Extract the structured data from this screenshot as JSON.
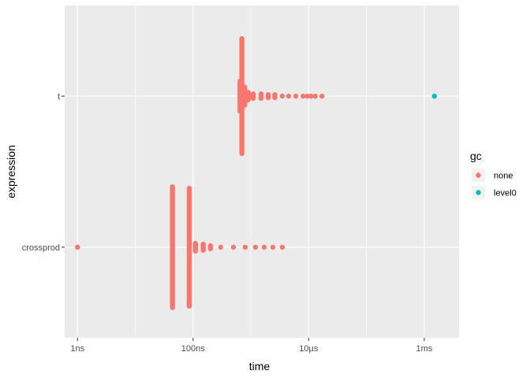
{
  "chart_data": {
    "type": "scatter",
    "title": "",
    "xlabel": "time",
    "ylabel": "expression",
    "x_scale": "log10",
    "x_unit": "seconds",
    "xlim": [
      6e-10,
      0.004
    ],
    "x_ticks": [
      {
        "value": 1e-09,
        "label": "1ns"
      },
      {
        "value": 1e-07,
        "label": "100ns"
      },
      {
        "value": 1e-05,
        "label": "10µs"
      },
      {
        "value": 0.001,
        "label": "1ms"
      }
    ],
    "categories": [
      "crossprod",
      "t"
    ],
    "grid": true,
    "legend": {
      "title": "gc",
      "position": "right",
      "entries": [
        {
          "label": "none",
          "color": "#F8766D"
        },
        {
          "label": "level0",
          "color": "#00BFC4"
        }
      ]
    },
    "series": [
      {
        "name": "none",
        "color": "#F8766D",
        "points": [
          {
            "x": 1e-09,
            "y": "crossprod"
          },
          {
            "x": 4.4e-08,
            "y": "crossprod",
            "spread": 0.8
          },
          {
            "x": 8.6e-08,
            "y": "crossprod",
            "spread": 0.78
          },
          {
            "x": 1.1e-07,
            "y": "crossprod",
            "spread": 0.05
          },
          {
            "x": 1.5e-07,
            "y": "crossprod",
            "spread": 0.04
          },
          {
            "x": 2e-07,
            "y": "crossprod",
            "spread": 0.02
          },
          {
            "x": 3e-07,
            "y": "crossprod"
          },
          {
            "x": 5e-07,
            "y": "crossprod"
          },
          {
            "x": 8e-07,
            "y": "crossprod"
          },
          {
            "x": 1.2e-06,
            "y": "crossprod"
          },
          {
            "x": 1.7e-06,
            "y": "crossprod"
          },
          {
            "x": 2.4e-06,
            "y": "crossprod"
          },
          {
            "x": 3.5e-06,
            "y": "crossprod"
          },
          {
            "x": 7e-07,
            "y": "t",
            "spread": 0.76
          },
          {
            "x": 6.5e-07,
            "y": "t",
            "spread": 0.2
          },
          {
            "x": 7.8e-07,
            "y": "t",
            "spread": 0.12
          },
          {
            "x": 9e-07,
            "y": "t",
            "spread": 0.05
          },
          {
            "x": 1.1e-06,
            "y": "t",
            "spread": 0.03
          },
          {
            "x": 1.5e-06,
            "y": "t",
            "spread": 0.03
          },
          {
            "x": 2e-06,
            "y": "t",
            "spread": 0.02
          },
          {
            "x": 2.6e-06,
            "y": "t",
            "spread": 0.02
          },
          {
            "x": 3.5e-06,
            "y": "t"
          },
          {
            "x": 4.5e-06,
            "y": "t"
          },
          {
            "x": 6e-06,
            "y": "t"
          },
          {
            "x": 8e-06,
            "y": "t"
          },
          {
            "x": 9.5e-06,
            "y": "t"
          },
          {
            "x": 1.1e-05,
            "y": "t"
          },
          {
            "x": 1.3e-05,
            "y": "t"
          },
          {
            "x": 1.7e-05,
            "y": "t"
          }
        ]
      },
      {
        "name": "level0",
        "color": "#00BFC4",
        "points": [
          {
            "x": 0.0015,
            "y": "t"
          }
        ]
      }
    ]
  }
}
